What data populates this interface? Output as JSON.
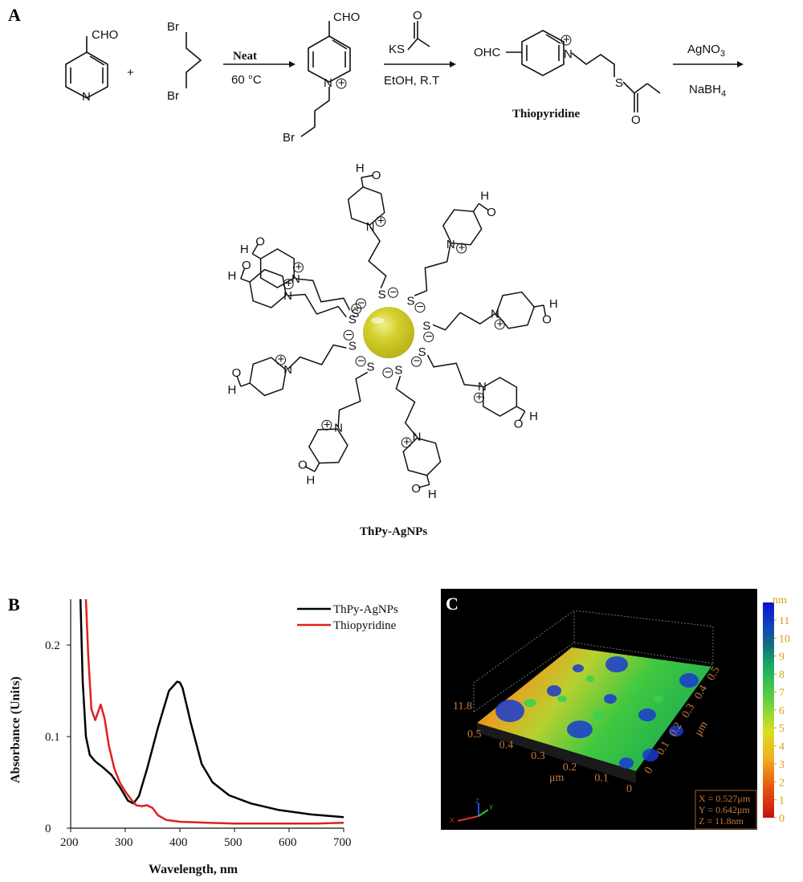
{
  "panels": {
    "a": "A",
    "b": "B",
    "c": "C"
  },
  "scheme": {
    "reactant1_group": "CHO",
    "plus": "+",
    "reactant2_br_top": "Br",
    "reactant2_br_bottom": "Br",
    "step1_condition_top": "Neat",
    "step1_condition_bottom": "60 °C",
    "intermediate_group": "CHO",
    "intermediate_br": "Br",
    "step2_reagent": "KS",
    "step2_condition": "EtOH, R.T",
    "product_group": "OHC",
    "product_s": "S",
    "product_name": "Thiopyridine",
    "step3_reagent_top": "AgNO",
    "step3_reagent_top_sub": "3",
    "step3_reagent_bottom": "NaBH",
    "step3_reagent_bottom_sub": "4",
    "pyridine_n": "N",
    "pyridinium_n": "N",
    "charge_plus": "+",
    "charge_minus": "−",
    "aldehyde_o": "O",
    "aldehyde_h": "H",
    "nanoparticle_label": "ThPy-AgNPs"
  },
  "chart_data": {
    "type": "line",
    "xlabel": "Wavelength, nm",
    "ylabel": "Absorbance (Units)",
    "xlim": [
      200,
      700
    ],
    "ylim": [
      0,
      0.25
    ],
    "xticks": [
      200,
      300,
      400,
      500,
      600,
      700
    ],
    "yticks": [
      0.0,
      0.1,
      0.2
    ],
    "legend_position": "top-right",
    "series": [
      {
        "name": "ThPy-AgNPs",
        "color": "#000000",
        "x": [
          218,
          222,
          228,
          235,
          245,
          260,
          275,
          290,
          305,
          315,
          325,
          340,
          360,
          380,
          395,
          400,
          405,
          420,
          440,
          460,
          490,
          530,
          580,
          640,
          700
        ],
        "y": [
          0.25,
          0.16,
          0.1,
          0.08,
          0.073,
          0.066,
          0.058,
          0.045,
          0.03,
          0.027,
          0.035,
          0.065,
          0.11,
          0.15,
          0.16,
          0.159,
          0.153,
          0.115,
          0.07,
          0.05,
          0.036,
          0.027,
          0.02,
          0.015,
          0.012
        ]
      },
      {
        "name": "Thiopyridine",
        "color": "#e02020",
        "x": [
          228,
          232,
          238,
          245,
          255,
          262,
          270,
          280,
          290,
          300,
          310,
          320,
          330,
          340,
          350,
          360,
          375,
          400,
          450,
          500,
          550,
          600,
          650,
          700
        ],
        "y": [
          0.25,
          0.19,
          0.13,
          0.118,
          0.135,
          0.12,
          0.09,
          0.065,
          0.05,
          0.04,
          0.032,
          0.025,
          0.024,
          0.025,
          0.022,
          0.014,
          0.009,
          0.007,
          0.006,
          0.005,
          0.005,
          0.005,
          0.005,
          0.006
        ]
      }
    ]
  },
  "afm": {
    "colorbar_unit": "nm",
    "colorbar_ticks": [
      "11",
      "10",
      "9",
      "8",
      "7",
      "6",
      "5",
      "4",
      "3",
      "2",
      "1",
      "0"
    ],
    "z_max_label": "11.8",
    "x_axis_ticks": [
      "0.5",
      "0.4",
      "0.3",
      "0.2",
      "0.1",
      "0"
    ],
    "x_axis_unit": "μm",
    "y_axis_ticks": [
      "0.5",
      "0.4",
      "0.3",
      "0.2",
      "0.1",
      "0"
    ],
    "y_axis_unit": "μm",
    "x_origin_label": "0",
    "info_x": "X = 0.527μm",
    "info_y": "Y = 0.642μm",
    "info_z": "Z = 11.8nm",
    "axis_triad_x": "X",
    "axis_triad_y": "Y",
    "axis_triad_z": "Z"
  }
}
